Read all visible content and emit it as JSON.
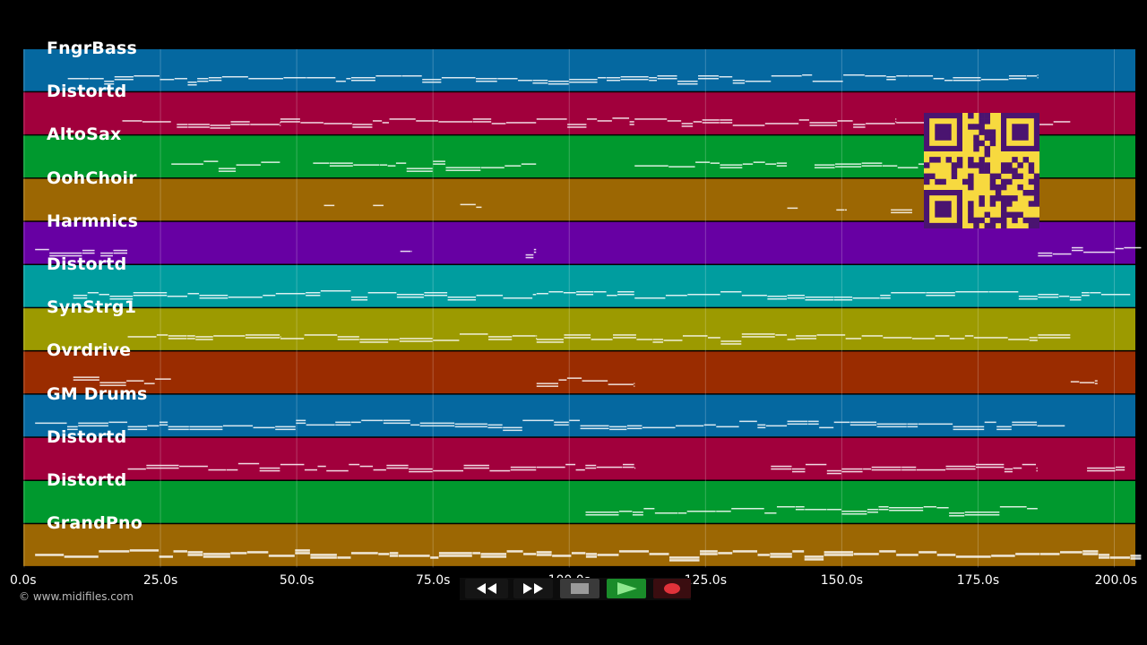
{
  "tracks": [
    {
      "name": "FngrBass",
      "color": "#0568a0"
    },
    {
      "name": "Distortd",
      "color": "#a1003c"
    },
    {
      "name": "AltoSax",
      "color": "#00992e"
    },
    {
      "name": "OohChoir",
      "color": "#9c6703"
    },
    {
      "name": "Harmnics",
      "color": "#6700a3"
    },
    {
      "name": "Distortd",
      "color": "#009d9f"
    },
    {
      "name": "SynStrg1",
      "color": "#9c9a00"
    },
    {
      "name": "Ovrdrive",
      "color": "#9a2c00"
    },
    {
      "name": "GM Drums",
      "color": "#0568a0"
    },
    {
      "name": "Distortd",
      "color": "#a1003c"
    },
    {
      "name": "Distortd",
      "color": "#00992e"
    },
    {
      "name": "GrandPno",
      "color": "#9c6703"
    }
  ],
  "timeline": {
    "ticks": [
      "0.0s",
      "25.0s",
      "50.0s",
      "75.0s",
      "100.0s",
      "125.0s",
      "150.0s",
      "175.0s",
      "200.0s"
    ],
    "tick_seconds": [
      0,
      25,
      50,
      75,
      100,
      125,
      150,
      175,
      200
    ],
    "max_seconds": 204
  },
  "copyright": "© www.midifiles.com",
  "transport": {
    "rewind_icon": "rewind-icon",
    "fast_forward_icon": "fast-forward-icon",
    "stop_icon": "stop-icon",
    "play_icon": "play-icon",
    "record_icon": "record-icon",
    "play_color": "#1a8c2a",
    "record_color": "#e0323a"
  },
  "qr_code": {
    "icon": "qr-code-icon",
    "color": "#f7d93f",
    "dark": "#4a1470"
  },
  "notes": [
    {
      "track": 0,
      "segments": [
        [
          8,
          30
        ],
        [
          30,
          60
        ],
        [
          60,
          100
        ],
        [
          100,
          130
        ],
        [
          130,
          160
        ],
        [
          160,
          186
        ]
      ]
    },
    {
      "track": 1,
      "segments": [
        [
          18,
          27
        ],
        [
          28,
          47
        ],
        [
          47,
          67
        ],
        [
          67,
          94
        ],
        [
          94,
          112
        ],
        [
          112,
          130
        ],
        [
          130,
          160
        ],
        [
          160,
          192
        ]
      ]
    },
    {
      "track": 2,
      "segments": [
        [
          27,
          47
        ],
        [
          53,
          94
        ],
        [
          112,
          140
        ],
        [
          145,
          170
        ]
      ]
    },
    {
      "track": 3,
      "segments": [
        [
          55,
          57
        ],
        [
          64,
          66
        ],
        [
          80,
          84
        ],
        [
          140,
          142
        ],
        [
          149,
          151
        ],
        [
          159,
          163
        ]
      ]
    },
    {
      "track": 4,
      "segments": [
        [
          2,
          13
        ],
        [
          14,
          19
        ],
        [
          69,
          71
        ],
        [
          92,
          94
        ],
        [
          186,
          205
        ]
      ]
    },
    {
      "track": 5,
      "segments": [
        [
          9,
          30
        ],
        [
          30,
          60
        ],
        [
          60,
          94
        ],
        [
          94,
          112
        ],
        [
          112,
          140
        ],
        [
          140,
          186
        ],
        [
          186,
          203
        ]
      ]
    },
    {
      "track": 6,
      "segments": [
        [
          19,
          47
        ],
        [
          47,
          94
        ],
        [
          94,
          140
        ],
        [
          140,
          186
        ],
        [
          186,
          192
        ]
      ]
    },
    {
      "track": 7,
      "segments": [
        [
          9,
          27
        ],
        [
          94,
          112
        ],
        [
          192,
          197
        ]
      ]
    },
    {
      "track": 8,
      "segments": [
        [
          2,
          19
        ],
        [
          19,
          60
        ],
        [
          60,
          100
        ],
        [
          100,
          140
        ],
        [
          140,
          186
        ],
        [
          186,
          191
        ]
      ]
    },
    {
      "track": 9,
      "segments": [
        [
          19,
          47
        ],
        [
          47,
          94
        ],
        [
          94,
          112
        ],
        [
          137,
          150
        ],
        [
          150,
          186
        ],
        [
          195,
          202
        ]
      ]
    },
    {
      "track": 10,
      "segments": [
        [
          103,
          120
        ],
        [
          120,
          150
        ],
        [
          150,
          186
        ]
      ]
    },
    {
      "track": 11,
      "segments": [
        [
          2,
          30
        ],
        [
          30,
          60
        ],
        [
          60,
          94
        ],
        [
          94,
          130
        ],
        [
          130,
          160
        ],
        [
          160,
          205
        ]
      ]
    }
  ]
}
